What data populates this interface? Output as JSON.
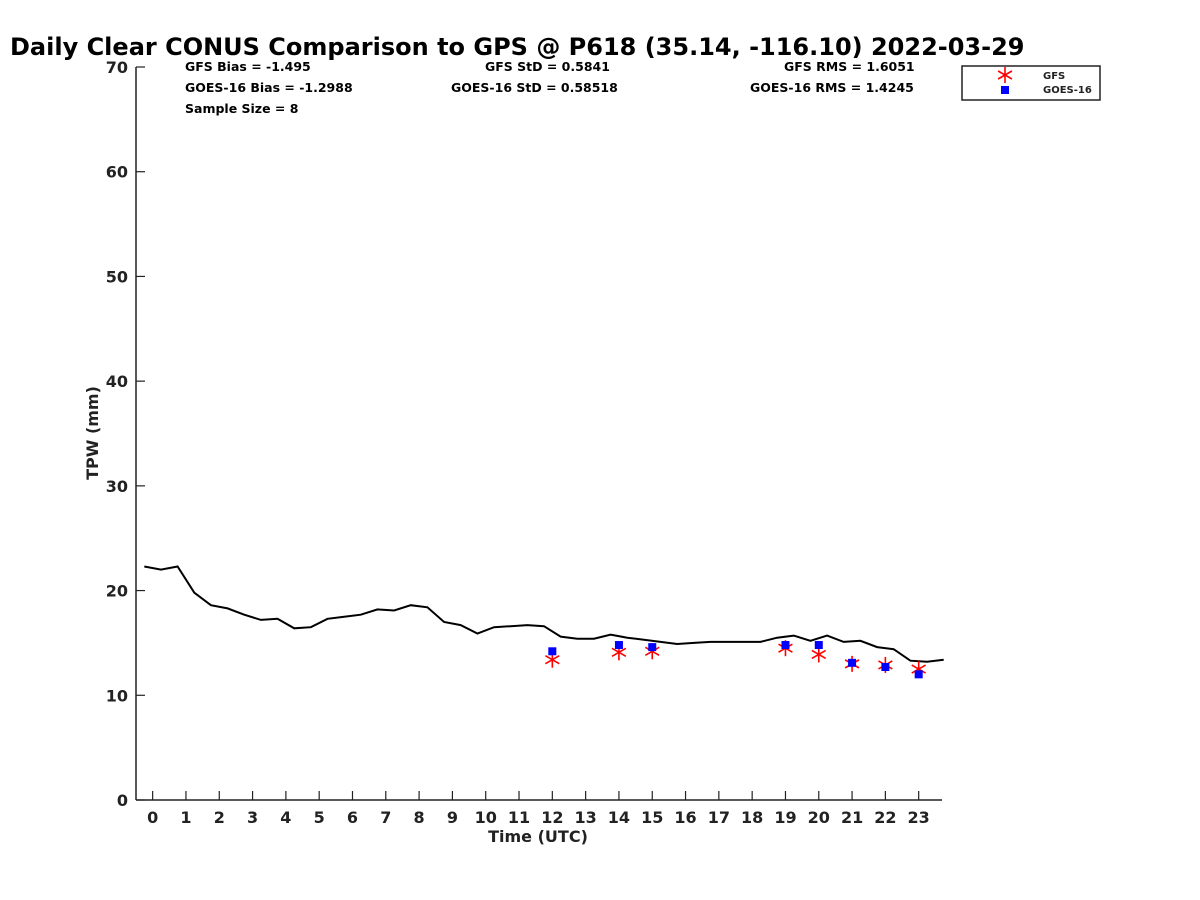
{
  "chart_data": {
    "type": "line",
    "title": "Daily Clear CONUS Comparison to GPS @ P618 (35.14, -116.10) 2022-03-29",
    "xlabel": "Time (UTC)",
    "ylabel": "TPW (mm)",
    "xlim": [
      -0.5,
      23.7
    ],
    "ylim": [
      0,
      70
    ],
    "x_ticks": [
      0,
      1,
      2,
      3,
      4,
      5,
      6,
      7,
      8,
      9,
      10,
      11,
      12,
      13,
      14,
      15,
      16,
      17,
      18,
      19,
      20,
      21,
      22,
      23
    ],
    "y_ticks": [
      0,
      10,
      20,
      30,
      40,
      50,
      60,
      70
    ],
    "grid": false,
    "legend_position": "top-right, outside plot",
    "stats": {
      "gfs_bias": "GFS Bias = -1.495",
      "goes_bias": "GOES-16 Bias = -1.2988",
      "sample_size": "Sample Size = 8",
      "gfs_std": "GFS StD = 0.5841",
      "goes_std": "GOES-16 StD = 0.58518",
      "gfs_rms": "GFS RMS = 1.6051",
      "goes_rms": "GOES-16 RMS = 1.4245"
    },
    "series": [
      {
        "kind": "line",
        "color": "#000000",
        "x": [
          -0.25,
          0.25,
          0.75,
          1.25,
          1.75,
          2.25,
          2.75,
          3.25,
          3.75,
          4.25,
          4.75,
          5.25,
          5.75,
          6.25,
          6.75,
          7.25,
          7.75,
          8.25,
          8.75,
          9.25,
          9.75,
          10.25,
          10.75,
          11.25,
          11.75,
          12.25,
          12.75,
          13.25,
          13.75,
          14.25,
          14.75,
          15.25,
          15.75,
          16.25,
          16.75,
          17.25,
          17.75,
          18.25,
          18.75,
          19.25,
          19.75,
          20.25,
          20.75,
          21.25,
          21.75,
          22.25,
          22.75,
          23.25,
          23.75
        ],
        "values": [
          22.3,
          22.0,
          22.3,
          19.8,
          18.6,
          18.3,
          17.7,
          17.2,
          17.3,
          16.4,
          16.5,
          17.3,
          17.5,
          17.7,
          18.2,
          18.1,
          18.6,
          18.4,
          17.0,
          16.7,
          15.9,
          16.5,
          16.6,
          16.7,
          16.6,
          15.6,
          15.4,
          15.4,
          15.8,
          15.5,
          15.3,
          15.1,
          14.9,
          15.0,
          15.1,
          15.1,
          15.1,
          15.1,
          15.5,
          15.7,
          15.2,
          15.7,
          15.1,
          15.2,
          14.6,
          14.4,
          13.3,
          13.2,
          13.4
        ]
      },
      {
        "name": "GFS",
        "kind": "scatter",
        "marker": "asterisk",
        "color": "#ff0000",
        "x": [
          12,
          14,
          15,
          19,
          20,
          21,
          22,
          23
        ],
        "values": [
          13.4,
          14.1,
          14.2,
          14.5,
          13.9,
          13.0,
          12.9,
          12.5
        ]
      },
      {
        "name": "GOES-16",
        "kind": "scatter",
        "marker": "square",
        "color": "#0000ff",
        "x": [
          12,
          14,
          15,
          19,
          20,
          21,
          22,
          23
        ],
        "values": [
          14.2,
          14.8,
          14.6,
          14.8,
          14.8,
          13.1,
          12.7,
          12.0
        ]
      }
    ]
  }
}
